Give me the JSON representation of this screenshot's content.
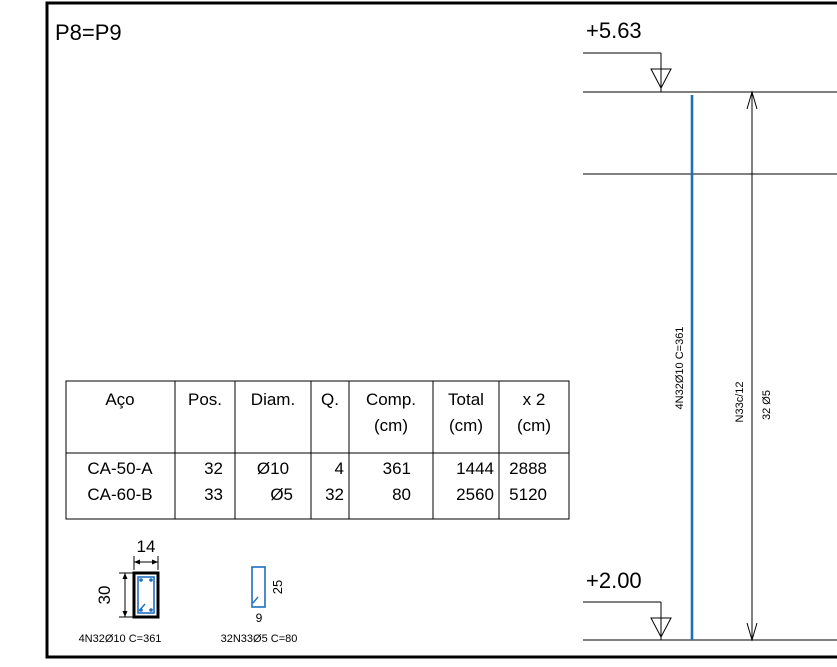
{
  "title": "P8=P9",
  "levels": {
    "top": "+5.63",
    "bottom": "+2.00"
  },
  "table": {
    "headers": [
      [
        "Aço"
      ],
      [
        "Pos."
      ],
      [
        "Diam."
      ],
      [
        "Q."
      ],
      [
        "Comp.",
        "(cm)"
      ],
      [
        "Total",
        "(cm)"
      ],
      [
        "x 2",
        "(cm)"
      ]
    ],
    "rows": [
      [
        "CA-50-A",
        "32",
        "Ø10",
        "4",
        "361",
        "1444",
        "2888"
      ],
      [
        "CA-60-B",
        "33",
        "Ø5",
        "32",
        "80",
        "2560",
        "5120"
      ]
    ]
  },
  "section": {
    "width": "14",
    "height": "30",
    "bar_label": "4N32Ø10 C=361"
  },
  "stirrup": {
    "width": "9",
    "height": "25",
    "label": "32N33Ø5 C=80"
  },
  "elevation": {
    "longitudinal_label": "4N32Ø10 C=361",
    "stirrup_label_1": "N33c/12",
    "stirrup_label_2": "32 Ø5"
  },
  "colors": {
    "rebar": "#1f6fc0",
    "line": "#000000"
  }
}
